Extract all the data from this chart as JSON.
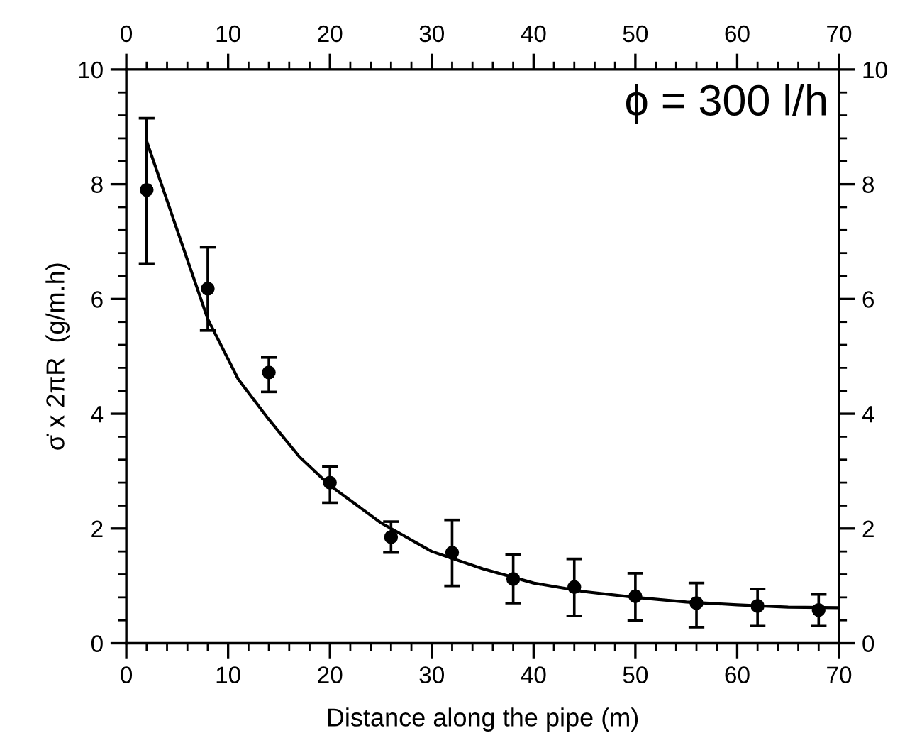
{
  "chart_data": {
    "type": "scatter",
    "xlabel": "Distance along the pipe (m)",
    "ylabel": "σ̇ x 2πR  (g/m.h)",
    "annotations": [
      "ϕ = 300 l/h"
    ],
    "xlim": [
      0,
      70
    ],
    "xticks": [
      0,
      10,
      20,
      30,
      40,
      50,
      60,
      70
    ],
    "x2lim": [
      0,
      70
    ],
    "x2ticks": [
      0,
      10,
      20,
      30,
      40,
      50,
      60,
      70
    ],
    "ylim": [
      0,
      10
    ],
    "yticks": [
      0,
      2,
      4,
      6,
      8,
      10
    ],
    "y2lim": [
      0,
      10
    ],
    "y2ticks": [
      0,
      2,
      4,
      6,
      8,
      10
    ],
    "grid": false,
    "legend": false,
    "marker": "circle",
    "series": [
      {
        "color": "#000000",
        "x": [
          2,
          8,
          14,
          20,
          26,
          32,
          38,
          44,
          50,
          56,
          62,
          68
        ],
        "values": [
          7.9,
          6.18,
          4.72,
          2.8,
          1.85,
          1.58,
          1.12,
          0.98,
          0.82,
          0.7,
          0.65,
          0.58
        ],
        "errors": [
          [
            6.62,
            9.15
          ],
          [
            5.45,
            6.9
          ],
          [
            4.38,
            4.98
          ],
          [
            2.45,
            3.08
          ],
          [
            1.58,
            2.12
          ],
          [
            1.0,
            2.15
          ],
          [
            0.7,
            1.55
          ],
          [
            0.48,
            1.47
          ],
          [
            0.4,
            1.22
          ],
          [
            0.28,
            1.05
          ],
          [
            0.3,
            0.95
          ],
          [
            0.3,
            0.85
          ]
        ]
      },
      {
        "type": "line",
        "color": "#000000",
        "marker": "none",
        "line_style": "solid",
        "x": [
          2,
          5,
          8,
          11,
          14,
          17,
          20,
          25,
          30,
          35,
          40,
          45,
          50,
          55,
          60,
          65,
          70
        ],
        "values": [
          8.75,
          7.2,
          5.65,
          4.6,
          3.9,
          3.25,
          2.75,
          2.1,
          1.6,
          1.3,
          1.05,
          0.9,
          0.8,
          0.72,
          0.67,
          0.63,
          0.62
        ]
      }
    ]
  }
}
